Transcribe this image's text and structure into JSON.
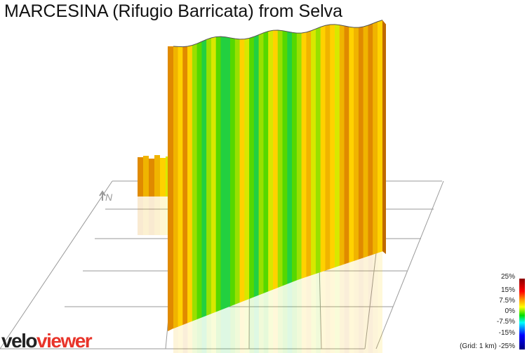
{
  "title": "MARCESINA (Rifugio Barricata) from Selva",
  "north_label": "N",
  "logo": {
    "part1": "velo",
    "part2": "viewer"
  },
  "legend": {
    "labels": [
      "25%",
      "15%",
      "7.5%",
      "0%",
      "-7.5%",
      "-15%"
    ],
    "grid_note": "(Grid: 1 km) -25%",
    "gradient_colors": [
      "#8b0000",
      "#ff0000",
      "#ff9900",
      "#ffff00",
      "#00dd00",
      "#00ffff",
      "#0000ff",
      "#000080"
    ]
  },
  "chart_data": {
    "type": "3d-elevation-profile",
    "title": "MARCESINA (Rifugio Barricata) from Selva",
    "grid_km": 1,
    "gradient_scale_percent": [
      25,
      15,
      7.5,
      0,
      -7.5,
      -15,
      -25
    ],
    "segment_gradients": [
      8,
      6,
      10,
      5,
      3,
      2,
      1,
      3,
      4,
      2,
      1,
      0,
      2,
      3,
      5,
      4,
      2,
      1,
      3,
      2,
      4,
      6,
      3,
      2,
      1,
      2,
      3,
      5,
      7,
      4,
      3,
      6,
      8,
      5,
      4,
      7,
      9,
      6,
      8,
      10,
      7,
      9,
      8,
      6
    ],
    "colors": {
      "steep": "#e08a00",
      "moderate": "#ffd200",
      "gentle": "#66dd00",
      "flat": "#00cc33"
    }
  }
}
